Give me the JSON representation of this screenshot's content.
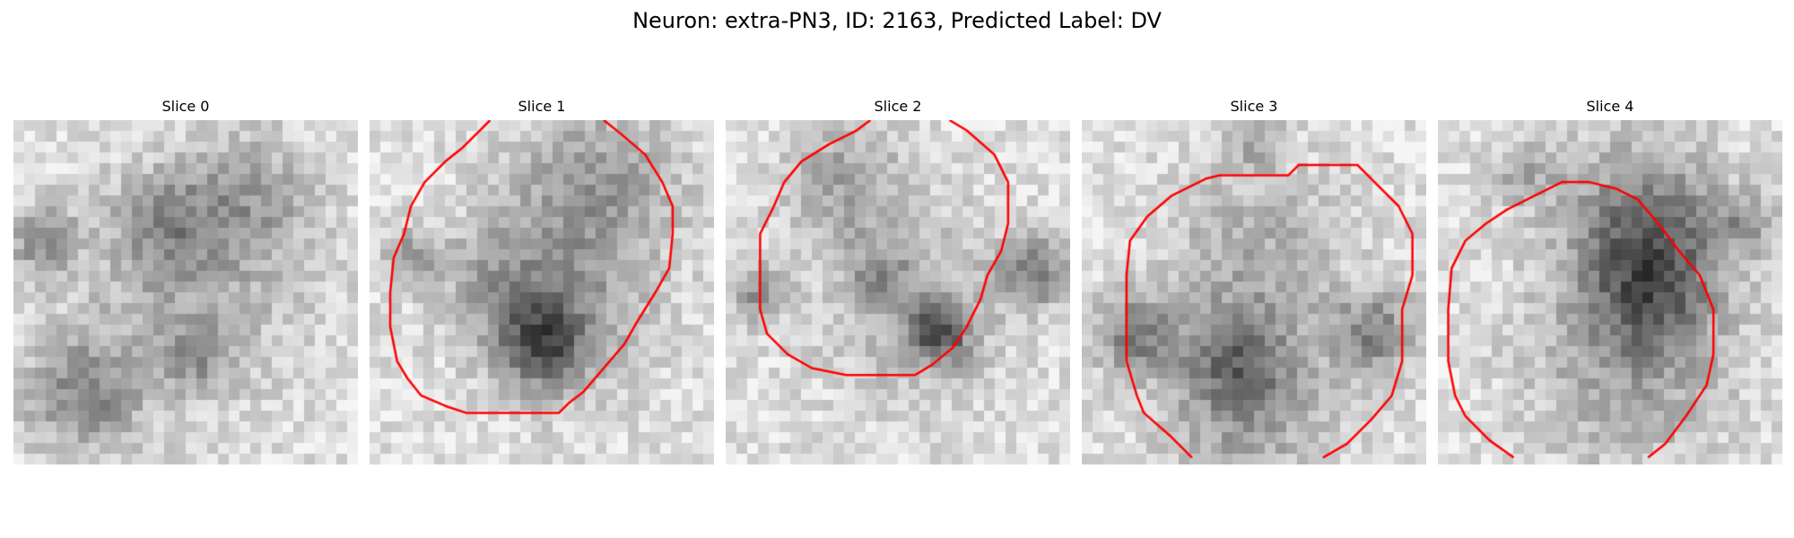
{
  "figure": {
    "title": "Neuron: extra-PN3, ID: 2163, Predicted Label: DV"
  },
  "panels": [
    {
      "title": "Slice 0",
      "contour": false,
      "blobs": [
        [
          0.08,
          0.35,
          0.12,
          0.45
        ],
        [
          0.7,
          0.22,
          0.22,
          0.3
        ],
        [
          0.45,
          0.3,
          0.18,
          0.35
        ],
        [
          0.52,
          0.48,
          0.4,
          0.28
        ],
        [
          0.2,
          0.8,
          0.2,
          0.5
        ],
        [
          0.52,
          0.7,
          0.12,
          0.3
        ]
      ]
    },
    {
      "title": "Slice 1",
      "contour": true,
      "blobs": [
        [
          0.55,
          0.55,
          0.3,
          0.35
        ],
        [
          0.65,
          0.2,
          0.3,
          0.4
        ],
        [
          0.5,
          0.65,
          0.15,
          0.7
        ],
        [
          0.12,
          0.4,
          0.1,
          0.4
        ],
        [
          0.35,
          0.45,
          0.18,
          0.25
        ]
      ]
    },
    {
      "title": "Slice 2",
      "contour": true,
      "blobs": [
        [
          0.35,
          0.18,
          0.22,
          0.35
        ],
        [
          0.55,
          0.55,
          0.32,
          0.3
        ],
        [
          0.62,
          0.62,
          0.1,
          0.7
        ],
        [
          0.1,
          0.5,
          0.1,
          0.45
        ],
        [
          0.9,
          0.44,
          0.12,
          0.55
        ],
        [
          0.45,
          0.45,
          0.1,
          0.3
        ]
      ]
    },
    {
      "title": "Slice 3",
      "contour": true,
      "blobs": [
        [
          0.5,
          0.4,
          0.32,
          0.3
        ],
        [
          0.15,
          0.62,
          0.14,
          0.55
        ],
        [
          0.85,
          0.62,
          0.14,
          0.55
        ],
        [
          0.48,
          0.85,
          0.3,
          0.35
        ],
        [
          0.45,
          0.7,
          0.18,
          0.45
        ],
        [
          0.5,
          0.05,
          0.1,
          0.35
        ]
      ]
    },
    {
      "title": "Slice 4",
      "contour": true,
      "blobs": [
        [
          0.6,
          0.3,
          0.28,
          0.6
        ],
        [
          0.62,
          0.5,
          0.22,
          0.45
        ],
        [
          0.55,
          0.72,
          0.35,
          0.35
        ],
        [
          0.25,
          0.15,
          0.12,
          0.3
        ],
        [
          0.9,
          0.3,
          0.1,
          0.35
        ]
      ]
    }
  ],
  "colors": {
    "contour": "#ff0000"
  }
}
